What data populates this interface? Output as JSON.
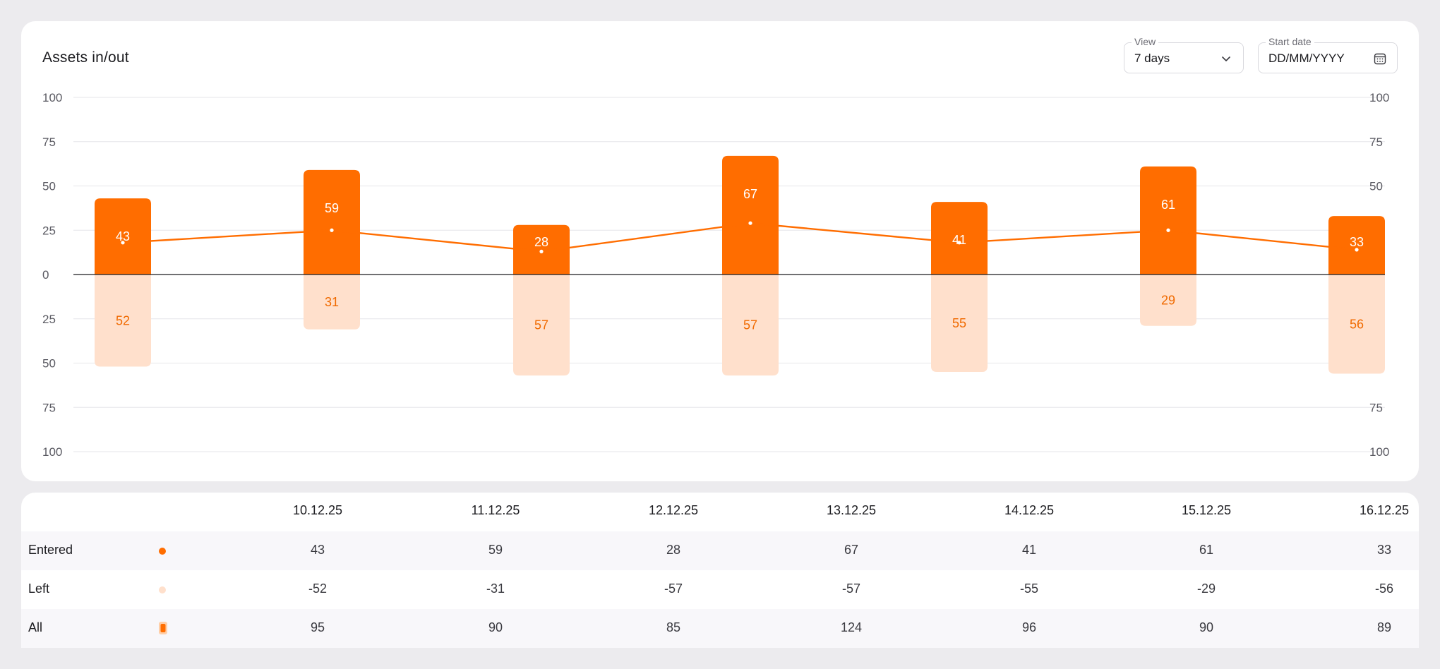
{
  "header": {
    "title": "Assets in/out",
    "view_label": "View",
    "view_value": "7 days",
    "start_date_label": "Start date",
    "start_date_placeholder": "DD/MM/YYYY"
  },
  "colors": {
    "entered": "#ff6d00",
    "left": "#ffe0cc",
    "line": "#ff6d00",
    "entered_label": "#ffffff",
    "left_label": "#f06a00"
  },
  "chart_data": {
    "type": "bar",
    "categories": [
      "10.12.25",
      "11.12.25",
      "12.12.25",
      "13.12.25",
      "14.12.25",
      "15.12.25",
      "16.12.25"
    ],
    "series": [
      {
        "name": "Entered",
        "values": [
          43,
          59,
          28,
          67,
          41,
          61,
          33
        ]
      },
      {
        "name": "Left",
        "values": [
          -52,
          -31,
          -57,
          -57,
          -55,
          -29,
          -56
        ]
      }
    ],
    "line": {
      "values": [
        18,
        25,
        13,
        29,
        18,
        25,
        14
      ]
    },
    "y_ticks_left": [
      "100",
      "75",
      "50",
      "25",
      "0",
      "25",
      "50",
      "75",
      "100"
    ],
    "y_ticks_right": [
      "100",
      "75",
      "50",
      "25",
      "0",
      "25",
      "50",
      "75",
      "100"
    ],
    "entered_labels": [
      "43",
      "59",
      "28",
      "67",
      "41",
      "61",
      "33"
    ],
    "left_labels": [
      "52",
      "31",
      "57",
      "57",
      "55",
      "29",
      "56"
    ],
    "ylim": [
      -100,
      100
    ],
    "grid": true,
    "title": "Assets in/out"
  },
  "table": {
    "columns": [
      "10.12.25",
      "11.12.25",
      "12.12.25",
      "13.12.25",
      "14.12.25",
      "15.12.25",
      "16.12.25"
    ],
    "rows": [
      {
        "label": "Entered",
        "values": [
          "43",
          "59",
          "28",
          "67",
          "41",
          "61",
          "33"
        ]
      },
      {
        "label": "Left",
        "values": [
          "-52",
          "-31",
          "-57",
          "-57",
          "-55",
          "-29",
          "-56"
        ]
      },
      {
        "label": "All",
        "values": [
          "95",
          "90",
          "85",
          "124",
          "96",
          "90",
          "89"
        ]
      }
    ]
  }
}
